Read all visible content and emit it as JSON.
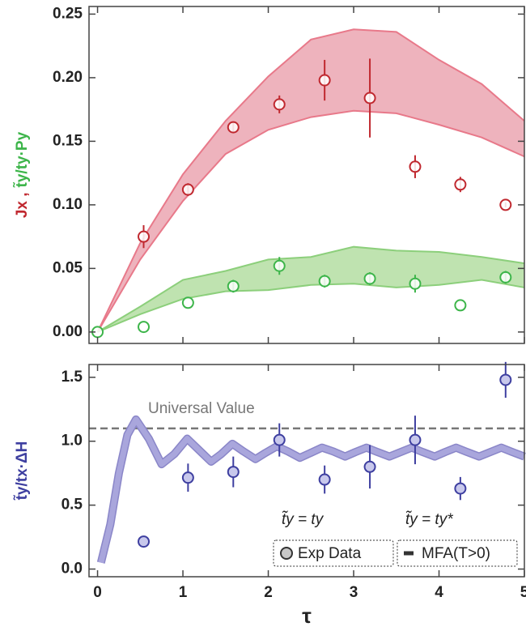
{
  "chart_data": [
    {
      "type": "scatter",
      "ylabel": "Jx ,",
      "ylabel2": "t̃y/ty·Py",
      "ylabel_color": "#c0282f",
      "ylabel2_color": "#3db54a",
      "xlim": [
        -0.1,
        5.0
      ],
      "xticks": [
        0,
        1,
        2,
        3,
        4,
        5
      ],
      "ylim": [
        -0.009,
        0.256
      ],
      "yticks": [
        {
          "value": 0,
          "label": "0.00"
        },
        0.05,
        {
          "value": 0.1,
          "label": "0.10"
        },
        0.15,
        {
          "value": 0.2,
          "label": "0.20"
        },
        0.25
      ],
      "bands": [
        {
          "color": "#eeb3bd",
          "edge": "#e8798a",
          "x": [
            0,
            0.5,
            1,
            1.5,
            2,
            2.5,
            3,
            3.5,
            4,
            4.5,
            5
          ],
          "upper": [
            0,
            0.07,
            0.124,
            0.166,
            0.201,
            0.23,
            0.238,
            0.236,
            0.214,
            0.195,
            0.166
          ],
          "lower": [
            0,
            0.057,
            0.103,
            0.14,
            0.159,
            0.169,
            0.174,
            0.172,
            0.163,
            0.153,
            0.138
          ]
        },
        {
          "color": "#bfe3b0",
          "edge": "#8ccf7b",
          "x": [
            0,
            0.5,
            1,
            1.5,
            2,
            2.5,
            3,
            3.5,
            4,
            4.5,
            5
          ],
          "upper": [
            0,
            0.02,
            0.041,
            0.048,
            0.057,
            0.059,
            0.067,
            0.064,
            0.063,
            0.059,
            0.054
          ],
          "lower": [
            0,
            0.014,
            0.026,
            0.032,
            0.033,
            0.037,
            0.038,
            0.035,
            0.037,
            0.041,
            0.035
          ]
        }
      ],
      "series": [
        {
          "color": "#c0282f",
          "x": [
            0.54,
            1.06,
            1.59,
            2.13,
            2.66,
            3.19,
            3.72,
            4.25,
            4.78
          ],
          "values": [
            0.075,
            0.112,
            0.161,
            0.179,
            0.198,
            0.184,
            0.13,
            0.116,
            0.1
          ],
          "errors": [
            0.009,
            0.005,
            0.004,
            0.007,
            0.016,
            0.031,
            0.009,
            0.006,
            0.002
          ]
        },
        {
          "color": "#3db54a",
          "x": [
            0,
            0.54,
            1.06,
            1.59,
            2.13,
            2.66,
            3.19,
            3.72,
            4.25,
            4.78
          ],
          "values": [
            0,
            0.004,
            0.023,
            0.036,
            0.052,
            0.04,
            0.042,
            0.038,
            0.021,
            0.043
          ],
          "errors": [
            0,
            0,
            0,
            0.005,
            0.007,
            0.005,
            0.005,
            0.007,
            0,
            0.005
          ]
        }
      ]
    },
    {
      "type": "scatter",
      "ylabel": "t̃y/tx·ΔH",
      "ylabel_color": "#3e3fa0",
      "xlabel": "τ",
      "xlim": [
        -0.1,
        5.0
      ],
      "xticks": [
        0,
        1,
        2,
        3,
        4,
        5
      ],
      "ylim": [
        -0.06,
        1.6
      ],
      "yticks": [
        {
          "value": 0,
          "label": "0.0"
        },
        0.5,
        {
          "value": 1,
          "label": "1.0"
        },
        1.5
      ],
      "reference_line": {
        "value": 1.1,
        "label": "Universal Value",
        "color": "#777"
      },
      "curve": {
        "color": "#a9a6dc",
        "x": [
          0.04,
          0.15,
          0.25,
          0.35,
          0.45,
          0.6,
          0.75,
          0.9,
          1.05,
          1.19,
          1.33,
          1.45,
          1.58,
          1.71,
          1.85,
          1.97,
          2.1,
          2.23,
          2.37,
          2.5,
          2.63,
          2.76,
          2.9,
          3.02,
          3.15,
          3.28,
          3.42,
          3.55,
          3.68,
          3.81,
          3.95,
          4.07,
          4.2,
          4.33,
          4.47,
          4.6,
          4.73,
          4.86,
          5.0
        ],
        "values": [
          0.05,
          0.35,
          0.75,
          1.05,
          1.17,
          1.02,
          0.82,
          0.9,
          1.02,
          0.93,
          0.84,
          0.9,
          0.98,
          0.92,
          0.86,
          0.91,
          0.96,
          0.92,
          0.87,
          0.91,
          0.95,
          0.92,
          0.88,
          0.915,
          0.95,
          0.915,
          0.88,
          0.915,
          0.95,
          0.915,
          0.88,
          0.915,
          0.95,
          0.915,
          0.88,
          0.915,
          0.95,
          0.915,
          0.88
        ]
      },
      "series": [
        {
          "color": "#3e3fa0",
          "fill": "#c8c8ec",
          "x": [
            0.54,
            1.06,
            1.59,
            2.13,
            2.66,
            3.19,
            3.72,
            4.25,
            4.78
          ],
          "values": [
            0.215,
            0.715,
            0.76,
            1.01,
            0.7,
            0.8,
            1.01,
            0.63,
            1.48
          ],
          "errors": [
            0.04,
            0.11,
            0.12,
            0.13,
            0.11,
            0.17,
            0.19,
            0.09,
            0.14
          ]
        }
      ],
      "legend": [
        {
          "header": "t̃y = ty",
          "label": "Exp Data"
        },
        {
          "header": "t̃y = ty*",
          "label": "MFA(T>0)"
        }
      ]
    }
  ]
}
